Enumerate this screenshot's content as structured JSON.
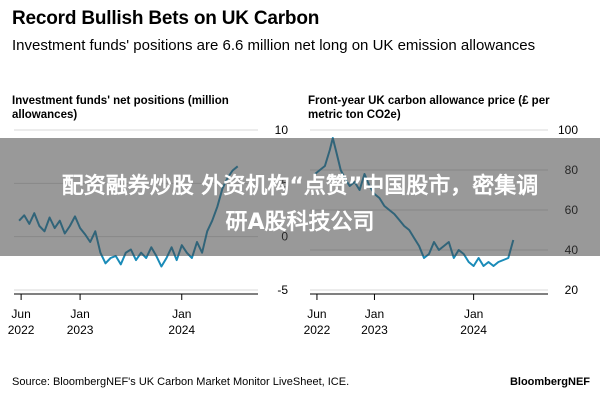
{
  "header": {
    "title": "Record Bullish Bets on UK Carbon",
    "subtitle": "Investment funds' positions are 6.6 million net long on UK emission allowances"
  },
  "footer": {
    "source": "Source: BloombergNEF's UK Carbon Market Monitor LiveSheet, ICE.",
    "brand": "BloombergNEF"
  },
  "overlay": {
    "line1": "配资融券炒股 外资机构“点赞”中国股市，密集调",
    "line2": "研A股科技公司"
  },
  "colors": {
    "line": "#1a8bb8",
    "grid": "#d9d9d9",
    "banner": "#464646"
  },
  "chart_data": [
    {
      "type": "line",
      "title": "Investment funds' net positions (million allowances)",
      "x_ticks": [
        {
          "x": 2022.42,
          "line1": "Jun",
          "line2": "2022"
        },
        {
          "x": 2023.0,
          "line1": "Jan",
          "line2": "2023"
        },
        {
          "x": 2024.0,
          "line1": "Jan",
          "line2": "2024"
        }
      ],
      "y_ticks": [
        10,
        5,
        0,
        -5
      ],
      "ylim": [
        -5,
        10
      ],
      "xlim": [
        2022.35,
        2024.75
      ],
      "grid": true,
      "series": [
        {
          "x": [
            2022.4,
            2022.45,
            2022.5,
            2022.55,
            2022.6,
            2022.65,
            2022.7,
            2022.75,
            2022.8,
            2022.85,
            2022.9,
            2022.95,
            2023.0,
            2023.05,
            2023.1,
            2023.15,
            2023.2,
            2023.25,
            2023.3,
            2023.35,
            2023.4,
            2023.45,
            2023.5,
            2023.55,
            2023.6,
            2023.65,
            2023.7,
            2023.75,
            2023.8,
            2023.85,
            2023.9,
            2023.95,
            2024.0,
            2024.05,
            2024.1,
            2024.15,
            2024.2,
            2024.25,
            2024.3,
            2024.35,
            2024.4,
            2024.45,
            2024.5,
            2024.55
          ],
          "values": [
            1.5,
            2.0,
            1.2,
            2.2,
            1.0,
            0.5,
            1.8,
            0.8,
            1.5,
            0.3,
            1.0,
            1.9,
            0.8,
            0.2,
            -0.5,
            0.5,
            -1.5,
            -2.5,
            -2.0,
            -1.8,
            -2.6,
            -1.5,
            -1.2,
            -2.2,
            -1.5,
            -2.0,
            -1.0,
            -1.8,
            -2.8,
            -2.0,
            -1.0,
            -2.2,
            -0.8,
            -1.5,
            -2.0,
            -0.5,
            -1.5,
            0.5,
            1.5,
            2.8,
            4.5,
            5.5,
            6.2,
            6.6
          ]
        }
      ]
    },
    {
      "type": "line",
      "title": "Front-year UK carbon allowance price (£ per metric ton CO2e)",
      "x_ticks": [
        {
          "x": 2022.42,
          "line1": "Jun",
          "line2": "2022"
        },
        {
          "x": 2023.0,
          "line1": "Jan",
          "line2": "2023"
        },
        {
          "x": 2024.0,
          "line1": "Jan",
          "line2": "2024"
        }
      ],
      "y_ticks": [
        100,
        80,
        60,
        40,
        20
      ],
      "ylim": [
        20,
        100
      ],
      "xlim": [
        2022.35,
        2024.75
      ],
      "grid": true,
      "series": [
        {
          "x": [
            2022.4,
            2022.45,
            2022.5,
            2022.55,
            2022.58,
            2022.62,
            2022.66,
            2022.7,
            2022.75,
            2022.8,
            2022.85,
            2022.9,
            2022.95,
            2023.0,
            2023.05,
            2023.1,
            2023.15,
            2023.2,
            2023.25,
            2023.3,
            2023.35,
            2023.4,
            2023.45,
            2023.5,
            2023.55,
            2023.6,
            2023.65,
            2023.7,
            2023.75,
            2023.8,
            2023.85,
            2023.9,
            2023.95,
            2024.0,
            2024.05,
            2024.1,
            2024.15,
            2024.2,
            2024.25,
            2024.3,
            2024.35,
            2024.4
          ],
          "values": [
            78,
            80,
            82,
            90,
            96,
            88,
            80,
            76,
            72,
            74,
            70,
            78,
            72,
            68,
            66,
            62,
            60,
            58,
            55,
            52,
            50,
            46,
            42,
            36,
            38,
            44,
            40,
            42,
            44,
            36,
            40,
            38,
            34,
            32,
            36,
            32,
            34,
            32,
            34,
            35,
            36,
            45
          ]
        }
      ]
    }
  ]
}
